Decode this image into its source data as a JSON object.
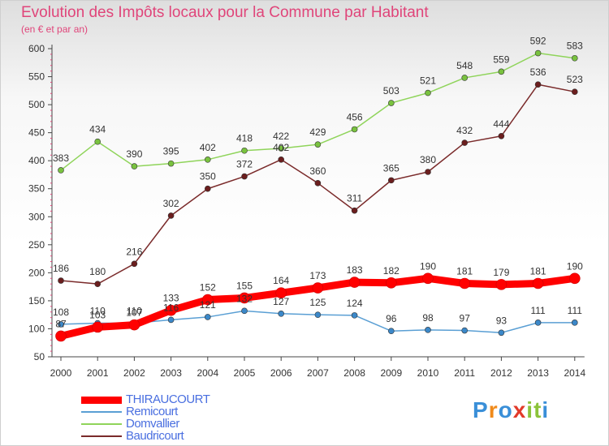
{
  "header": {
    "title": "Evolution des Impôts locaux pour la Commune par Habitant",
    "subtitle": "(en € et par an)"
  },
  "colors": {
    "title": "#e0457a",
    "axis": "#444444",
    "grid_tick": "#e0457a",
    "legend_text": "#4a6fe0"
  },
  "logo": {
    "text": "Proxiti",
    "letter_colors": [
      "#3a8fd8",
      "#f08a1a",
      "#3a8fd8",
      "#e23a2a",
      "#8bc33a",
      "#8bc33a",
      "#3a8fd8"
    ]
  },
  "chart_data": {
    "type": "line",
    "title": "Evolution des Impôts locaux pour la Commune par Habitant",
    "subtitle": "(en € et par an)",
    "x": [
      "2000",
      "2001",
      "2002",
      "2003",
      "2004",
      "2005",
      "2006",
      "2007",
      "2008",
      "2009",
      "2010",
      "2011",
      "2012",
      "2013",
      "2014"
    ],
    "ylim": [
      50,
      600
    ],
    "yticks": [
      50,
      100,
      150,
      200,
      250,
      300,
      350,
      400,
      450,
      500,
      550,
      600
    ],
    "legend_position": "bottom-left",
    "grid": false,
    "series": [
      {
        "name": "THIRAUCOURT",
        "color": "#ff0000",
        "marker_color": "#ff0000",
        "highlight": true,
        "values": [
          87,
          103,
          107,
          133,
          152,
          155,
          164,
          173,
          183,
          182,
          190,
          181,
          179,
          181,
          190
        ]
      },
      {
        "name": "Remicourt",
        "color": "#5a9fd4",
        "marker_color": "#3b88c9",
        "highlight": false,
        "values": [
          108,
          110,
          110,
          116,
          121,
          132,
          127,
          125,
          124,
          96,
          98,
          97,
          93,
          111,
          111
        ]
      },
      {
        "name": "Domvallier",
        "color": "#8fd45a",
        "marker_color": "#79c23f",
        "highlight": false,
        "values": [
          383,
          434,
          390,
          395,
          402,
          418,
          422,
          429,
          456,
          503,
          521,
          548,
          559,
          592,
          583
        ]
      },
      {
        "name": "Baudricourt",
        "color": "#7a2a2a",
        "marker_color": "#6b1e1e",
        "highlight": false,
        "values": [
          186,
          180,
          216,
          302,
          350,
          372,
          402,
          360,
          311,
          365,
          380,
          432,
          444,
          536,
          523
        ]
      }
    ]
  }
}
